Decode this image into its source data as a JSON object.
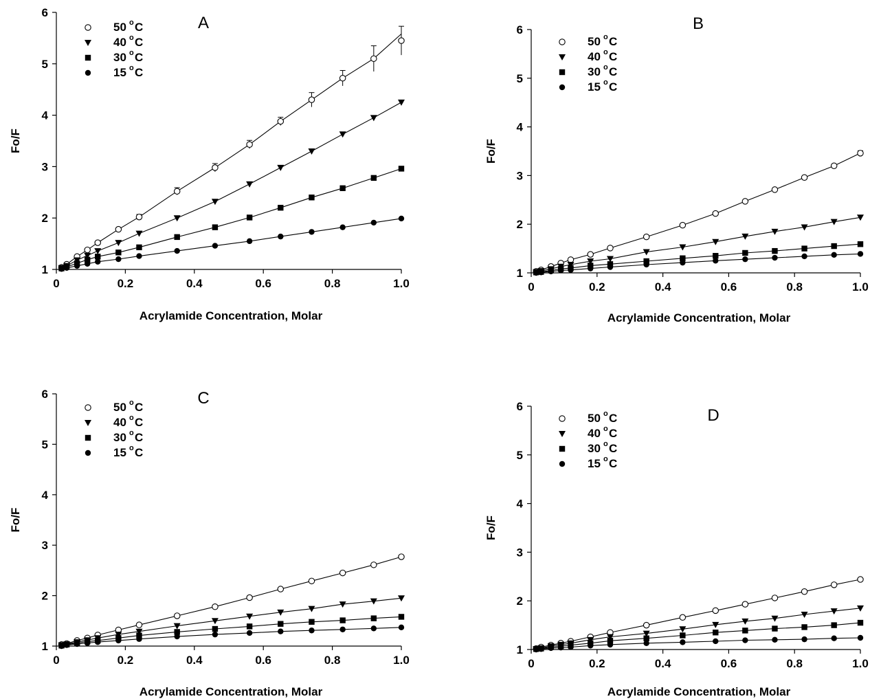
{
  "chart_data": [
    {
      "type": "line",
      "panel": "A",
      "xlabel": "Acrylamide Concentration, Molar",
      "ylabel": "Fo/F",
      "xlim": [
        0,
        1.0
      ],
      "ylim": [
        1,
        6
      ],
      "x_ticks": [
        "0",
        "0.2",
        "0.4",
        "0.6",
        "0.8",
        "1.0"
      ],
      "y_ticks": [
        "1",
        "2",
        "3",
        "4",
        "5",
        "6"
      ],
      "x": [
        0.015,
        0.03,
        0.06,
        0.09,
        0.12,
        0.18,
        0.24,
        0.35,
        0.46,
        0.56,
        0.65,
        0.74,
        0.83,
        0.92,
        1.0
      ],
      "legend_position": "top-left",
      "series": [
        {
          "name": "50",
          "unit": "C",
          "marker": "open-circle",
          "values": [
            1.04,
            1.1,
            1.25,
            1.38,
            1.52,
            1.78,
            2.02,
            2.52,
            2.98,
            3.43,
            3.88,
            4.3,
            4.72,
            5.1,
            5.45
          ],
          "error": [
            0,
            0,
            0,
            0,
            0,
            0,
            0.05,
            0.07,
            0.08,
            0.08,
            0.08,
            0.14,
            0.15,
            0.25,
            0.28
          ],
          "fit_end": 5.58
        },
        {
          "name": "40",
          "unit": "C",
          "marker": "filled-triangle-down",
          "values": [
            1.03,
            1.07,
            1.18,
            1.27,
            1.36,
            1.52,
            1.7,
            2.0,
            2.32,
            2.66,
            2.98,
            3.3,
            3.63,
            3.95,
            4.25
          ]
        },
        {
          "name": "30",
          "unit": "C",
          "marker": "filled-square",
          "values": [
            1.02,
            1.05,
            1.12,
            1.19,
            1.25,
            1.33,
            1.43,
            1.63,
            1.82,
            2.01,
            2.2,
            2.4,
            2.58,
            2.78,
            2.96
          ]
        },
        {
          "name": "15",
          "unit": "C",
          "marker": "filled-circle",
          "values": [
            1.01,
            1.03,
            1.07,
            1.11,
            1.15,
            1.2,
            1.26,
            1.36,
            1.46,
            1.55,
            1.64,
            1.73,
            1.82,
            1.91,
            1.99
          ]
        }
      ]
    },
    {
      "type": "line",
      "panel": "B",
      "xlabel": "Acrylamide Concentration, Molar",
      "ylabel": "Fo/F",
      "xlim": [
        0,
        1.0
      ],
      "ylim": [
        1,
        6
      ],
      "x_ticks": [
        "0",
        "0.2",
        "0.4",
        "0.6",
        "0.8",
        "1.0"
      ],
      "y_ticks": [
        "1",
        "2",
        "3",
        "4",
        "5",
        "6"
      ],
      "x": [
        0.015,
        0.03,
        0.06,
        0.09,
        0.12,
        0.18,
        0.24,
        0.35,
        0.46,
        0.56,
        0.65,
        0.74,
        0.83,
        0.92,
        1.0
      ],
      "legend_position": "top-left",
      "series": [
        {
          "name": "50",
          "unit": "C",
          "marker": "open-circle",
          "values": [
            1.03,
            1.06,
            1.13,
            1.2,
            1.27,
            1.38,
            1.51,
            1.74,
            1.98,
            2.22,
            2.47,
            2.71,
            2.96,
            3.2,
            3.46
          ],
          "error": [
            0,
            0,
            0,
            0,
            0,
            0,
            0,
            0,
            0,
            0,
            0,
            0,
            0,
            0,
            0.05
          ]
        },
        {
          "name": "40",
          "unit": "C",
          "marker": "filled-triangle-down",
          "values": [
            1.02,
            1.04,
            1.08,
            1.13,
            1.17,
            1.24,
            1.29,
            1.43,
            1.53,
            1.64,
            1.75,
            1.85,
            1.94,
            2.05,
            2.14
          ]
        },
        {
          "name": "30",
          "unit": "C",
          "marker": "filled-square",
          "values": [
            1.01,
            1.02,
            1.05,
            1.08,
            1.1,
            1.15,
            1.18,
            1.24,
            1.3,
            1.35,
            1.41,
            1.45,
            1.5,
            1.55,
            1.59
          ]
        },
        {
          "name": "15",
          "unit": "C",
          "marker": "filled-circle",
          "values": [
            1.0,
            1.01,
            1.03,
            1.05,
            1.06,
            1.09,
            1.12,
            1.17,
            1.21,
            1.25,
            1.28,
            1.31,
            1.34,
            1.37,
            1.39
          ]
        }
      ]
    },
    {
      "type": "line",
      "panel": "C",
      "xlabel": "Acrylamide Concentration, Molar",
      "ylabel": "Fo/F",
      "xlim": [
        0,
        1.0
      ],
      "ylim": [
        1,
        6
      ],
      "x_ticks": [
        "0",
        "0.2",
        "0.4",
        "0.6",
        "0.8",
        "1.0"
      ],
      "y_ticks": [
        "1",
        "2",
        "3",
        "4",
        "5",
        "6"
      ],
      "x": [
        0.015,
        0.03,
        0.06,
        0.09,
        0.12,
        0.18,
        0.24,
        0.35,
        0.46,
        0.56,
        0.65,
        0.74,
        0.83,
        0.92,
        1.0
      ],
      "legend_position": "top-left",
      "series": [
        {
          "name": "50",
          "unit": "C",
          "marker": "open-circle",
          "values": [
            1.03,
            1.05,
            1.11,
            1.16,
            1.22,
            1.32,
            1.42,
            1.6,
            1.78,
            1.96,
            2.13,
            2.29,
            2.45,
            2.61,
            2.77
          ]
        },
        {
          "name": "40",
          "unit": "C",
          "marker": "filled-triangle-down",
          "values": [
            1.02,
            1.04,
            1.08,
            1.12,
            1.16,
            1.23,
            1.29,
            1.4,
            1.5,
            1.59,
            1.67,
            1.74,
            1.83,
            1.89,
            1.95
          ]
        },
        {
          "name": "30",
          "unit": "C",
          "marker": "filled-square",
          "values": [
            1.01,
            1.03,
            1.06,
            1.09,
            1.11,
            1.16,
            1.21,
            1.28,
            1.34,
            1.39,
            1.44,
            1.48,
            1.51,
            1.55,
            1.58
          ]
        },
        {
          "name": "15",
          "unit": "C",
          "marker": "filled-circle",
          "values": [
            1.0,
            1.02,
            1.04,
            1.06,
            1.08,
            1.11,
            1.14,
            1.19,
            1.23,
            1.26,
            1.29,
            1.31,
            1.33,
            1.35,
            1.37
          ]
        }
      ]
    },
    {
      "type": "line",
      "panel": "D",
      "xlabel": "Acrylamide Concentration, Molar",
      "ylabel": "Fo/F",
      "xlim": [
        0,
        1.0
      ],
      "ylim": [
        1,
        6
      ],
      "x_ticks": [
        "0",
        "0.2",
        "0.4",
        "0.6",
        "0.8",
        "1.0"
      ],
      "y_ticks": [
        "1",
        "2",
        "3",
        "4",
        "5",
        "6"
      ],
      "x": [
        0.015,
        0.03,
        0.06,
        0.09,
        0.12,
        0.18,
        0.24,
        0.35,
        0.46,
        0.56,
        0.65,
        0.74,
        0.83,
        0.92,
        1.0
      ],
      "legend_position": "top-left",
      "series": [
        {
          "name": "50",
          "unit": "C",
          "marker": "open-circle",
          "values": [
            1.02,
            1.05,
            1.09,
            1.13,
            1.17,
            1.26,
            1.35,
            1.5,
            1.66,
            1.8,
            1.93,
            2.06,
            2.19,
            2.33,
            2.44
          ],
          "error": [
            0,
            0,
            0,
            0,
            0,
            0,
            0,
            0,
            0,
            0,
            0,
            0,
            0,
            0,
            0.03
          ]
        },
        {
          "name": "40",
          "unit": "C",
          "marker": "filled-triangle-down",
          "values": [
            1.01,
            1.03,
            1.07,
            1.1,
            1.13,
            1.2,
            1.26,
            1.33,
            1.42,
            1.51,
            1.58,
            1.64,
            1.72,
            1.79,
            1.85
          ]
        },
        {
          "name": "30",
          "unit": "C",
          "marker": "filled-square",
          "values": [
            1.01,
            1.02,
            1.05,
            1.07,
            1.09,
            1.13,
            1.18,
            1.23,
            1.29,
            1.35,
            1.39,
            1.43,
            1.46,
            1.5,
            1.55
          ]
        },
        {
          "name": "15",
          "unit": "C",
          "marker": "filled-circle",
          "values": [
            1.0,
            1.01,
            1.03,
            1.04,
            1.05,
            1.08,
            1.1,
            1.13,
            1.15,
            1.17,
            1.19,
            1.2,
            1.21,
            1.23,
            1.24
          ]
        }
      ]
    }
  ]
}
